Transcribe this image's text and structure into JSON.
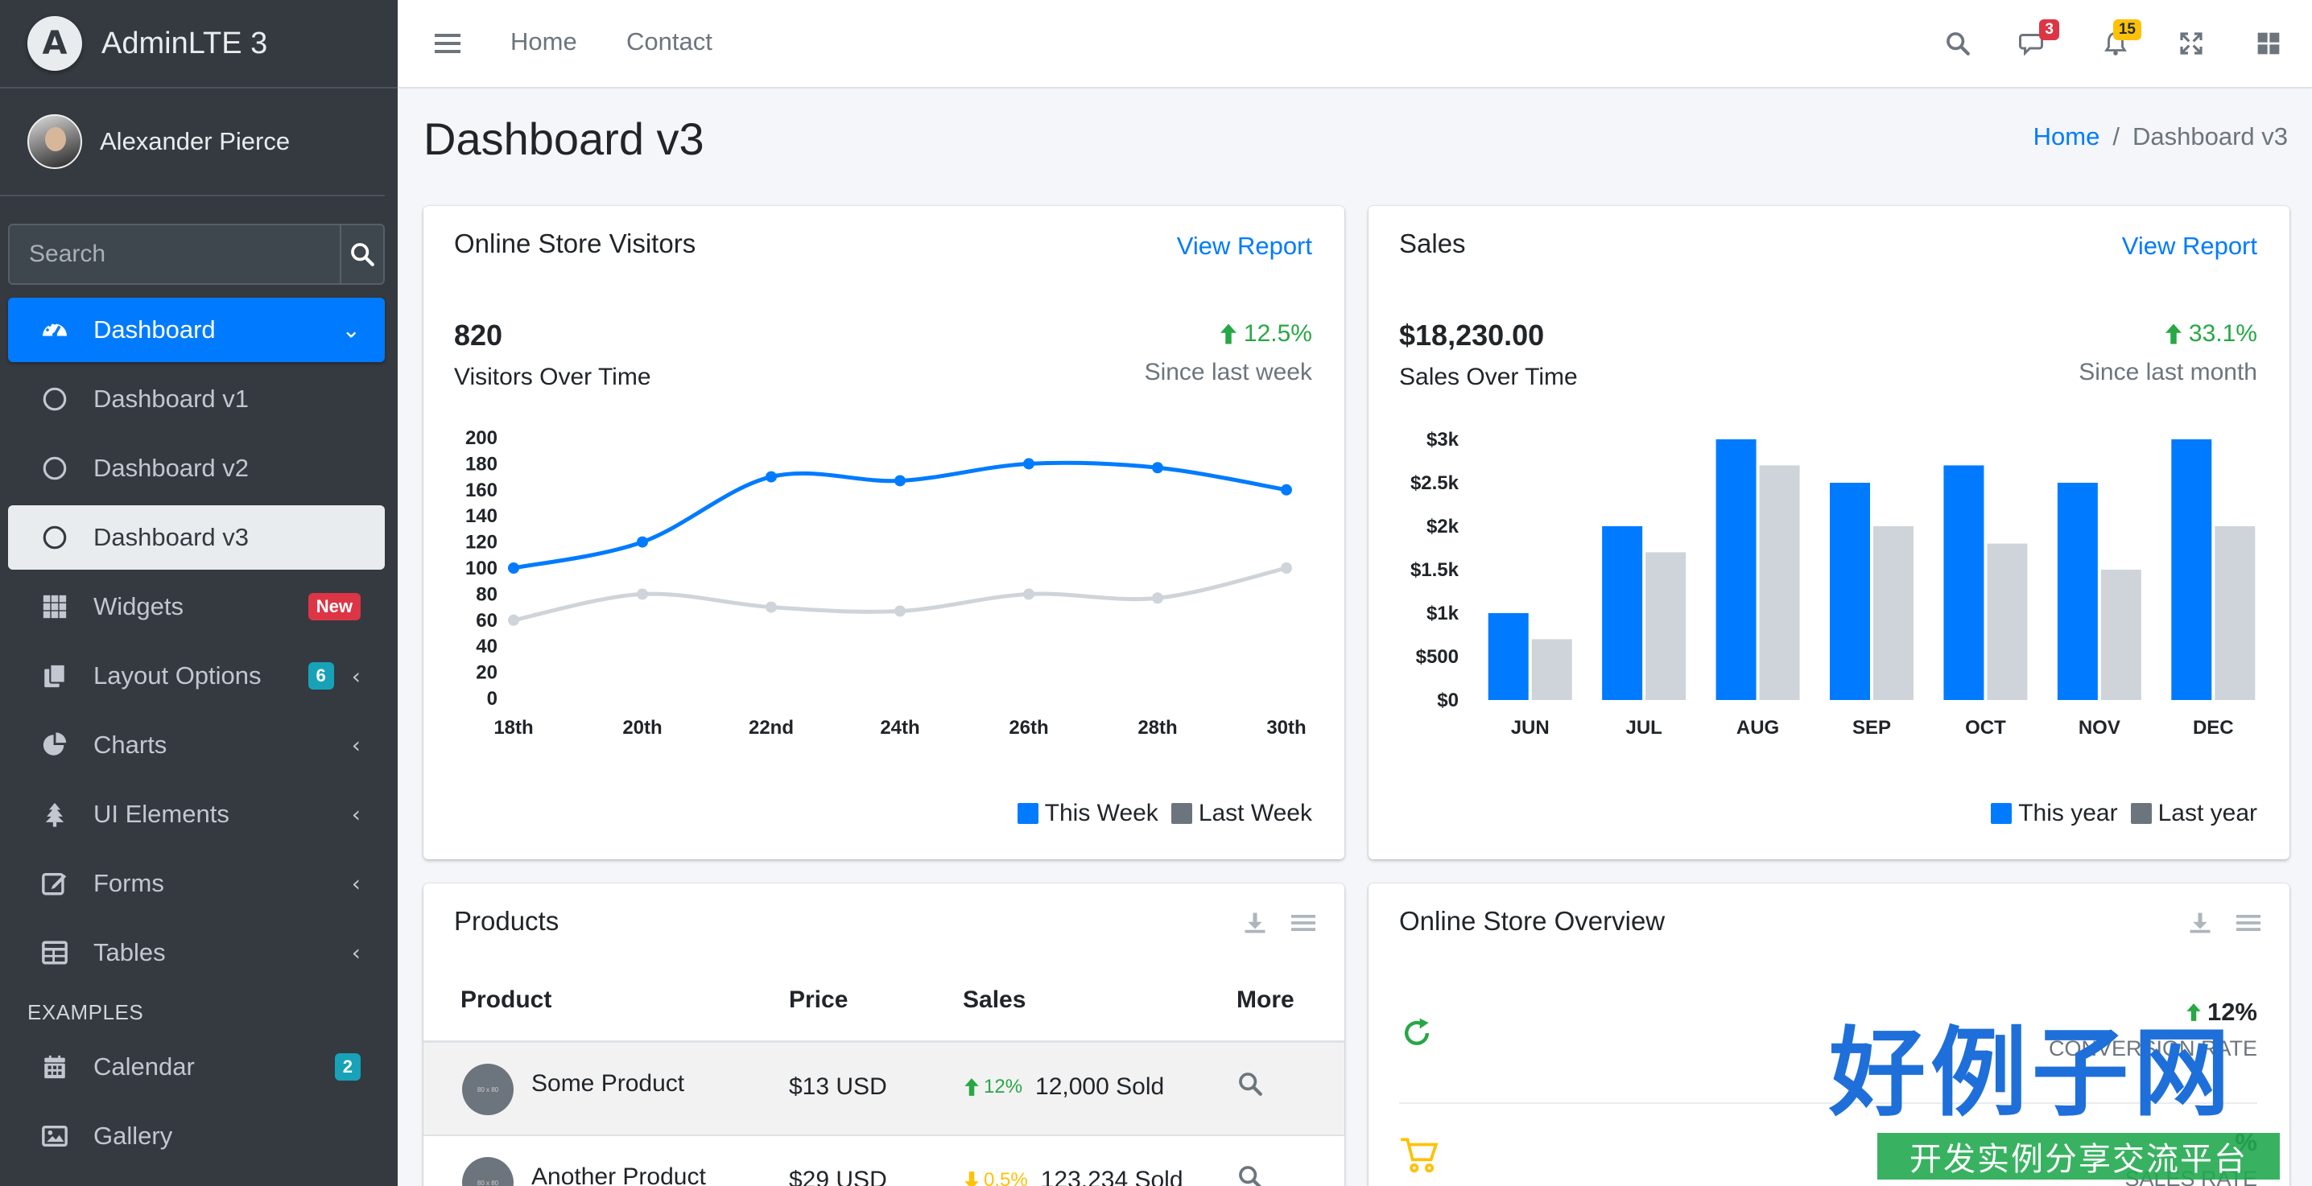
{
  "brand": {
    "title": "AdminLTE 3",
    "logo_letter": "A"
  },
  "user": {
    "name": "Alexander Pierce"
  },
  "sidebar_search": {
    "placeholder": "Search"
  },
  "nav": {
    "dashboard": "Dashboard",
    "dashboard_v1": "Dashboard v1",
    "dashboard_v2": "Dashboard v2",
    "dashboard_v3": "Dashboard v3",
    "widgets": "Widgets",
    "widgets_badge": "New",
    "layout_options": "Layout Options",
    "layout_badge": "6",
    "charts": "Charts",
    "ui_elements": "UI Elements",
    "forms": "Forms",
    "tables": "Tables",
    "examples_header": "EXAMPLES",
    "calendar": "Calendar",
    "calendar_badge": "2",
    "gallery": "Gallery"
  },
  "topbar": {
    "home": "Home",
    "contact": "Contact",
    "messages_count": "3",
    "notifications_count": "15"
  },
  "page": {
    "title": "Dashboard v3",
    "breadcrumb_home": "Home",
    "breadcrumb_sep": "/",
    "breadcrumb_current": "Dashboard v3"
  },
  "visitors_card": {
    "title": "Online Store Visitors",
    "link": "View Report",
    "value": "820",
    "label": "Visitors Over Time",
    "pct": "12.5%",
    "since": "Since last week",
    "legend_this": "This Week",
    "legend_last": "Last Week"
  },
  "sales_card": {
    "title": "Sales",
    "link": "View Report",
    "value": "$18,230.00",
    "label": "Sales Over Time",
    "pct": "33.1%",
    "since": "Since last month",
    "legend_this": "This year",
    "legend_last": "Last year"
  },
  "products_card": {
    "title": "Products",
    "headers": [
      "Product",
      "Price",
      "Sales",
      "More"
    ],
    "rows": [
      {
        "name": "Some Product",
        "price": "$13 USD",
        "pct": "12%",
        "sold": "12,000 Sold",
        "img": "80 x 80",
        "trend": "up"
      },
      {
        "name": "Another Product",
        "price": "$29 USD",
        "pct": "0.5%",
        "sold": "123,234 Sold",
        "img": "80 x 80",
        "trend": "down"
      }
    ]
  },
  "overview_card": {
    "title": "Online Store Overview",
    "rows": [
      {
        "pct": "12%",
        "label": "CONVERSION RATE"
      },
      {
        "pct": "%",
        "label": "SALES RATE"
      }
    ]
  },
  "watermark": {
    "text": "好例子网",
    "sub": "开发实例分享交流平台"
  },
  "colors": {
    "primary": "#007bff",
    "grey": "#ced4da",
    "legend_grey": "#6c757d",
    "success": "#28a745",
    "sidebar": "#343a40"
  },
  "chart_data": [
    {
      "type": "line",
      "x": [
        "18th",
        "20th",
        "22nd",
        "24th",
        "26th",
        "28th",
        "30th"
      ],
      "series": [
        {
          "name": "This Week",
          "values": [
            100,
            120,
            170,
            167,
            180,
            177,
            160
          ]
        },
        {
          "name": "Last Week",
          "values": [
            60,
            80,
            70,
            67,
            80,
            77,
            100
          ]
        }
      ],
      "ylim": [
        0,
        200
      ],
      "yticks": [
        "200",
        "180",
        "160",
        "140",
        "120",
        "100",
        "80",
        "60",
        "40",
        "20",
        "0"
      ],
      "legend": "bottom-right"
    },
    {
      "type": "bar",
      "categories": [
        "JUN",
        "JUL",
        "AUG",
        "SEP",
        "OCT",
        "NOV",
        "DEC"
      ],
      "series": [
        {
          "name": "This year",
          "values": [
            1000,
            2000,
            3000,
            2500,
            2700,
            2500,
            3000
          ]
        },
        {
          "name": "Last year",
          "values": [
            700,
            1700,
            2700,
            2000,
            1800,
            1500,
            2000
          ]
        }
      ],
      "ylim": [
        0,
        3000
      ],
      "yticks": [
        "$3k",
        "$2.5k",
        "$2k",
        "$1.5k",
        "$1k",
        "$500",
        "$0"
      ],
      "legend": "bottom-right"
    }
  ]
}
